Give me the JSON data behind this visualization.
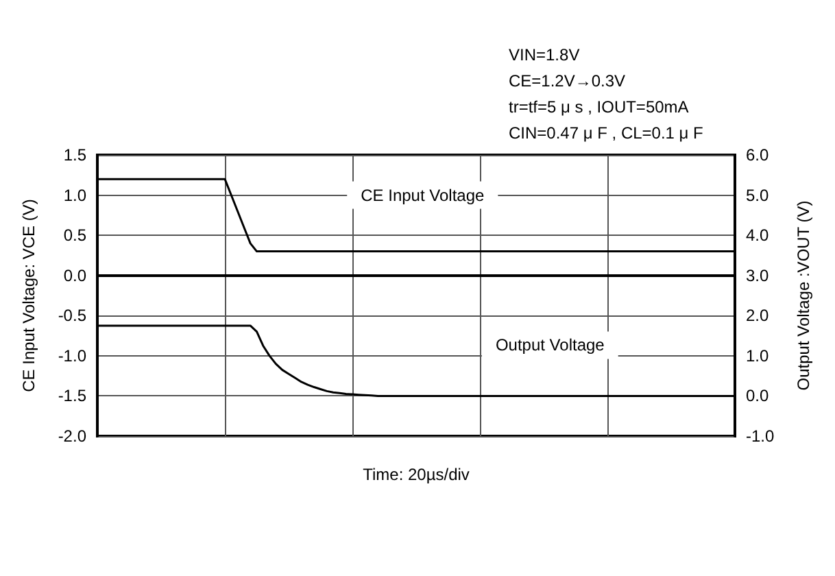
{
  "chart_data": {
    "type": "line",
    "annotations": [
      "VIN=1.8V",
      "CE=1.2V→0.3V",
      "tr=tf=5 μ s , IOUT=50mA",
      "CIN=0.47 μ F , CL=0.1 μ F"
    ],
    "xlabel": "Time: 20µs/div",
    "ylabel": "CE Input Voltage: VCE (V)",
    "y2label": "Output Voltage :VOUT (V)",
    "categories": [
      null,
      null,
      null,
      null,
      null,
      null,
      null,
      null,
      null,
      null,
      null,
      null,
      null,
      null,
      null,
      null,
      null,
      null,
      null,
      null,
      null,
      null,
      null,
      null,
      null,
      null,
      null,
      null,
      null,
      null,
      null,
      null,
      null,
      null,
      null,
      null,
      null,
      null,
      null,
      null,
      null,
      null,
      null,
      null,
      null,
      null,
      null,
      null,
      null,
      null,
      null,
      null,
      null,
      null,
      null,
      null,
      null,
      null,
      null,
      null,
      null,
      null,
      null,
      null,
      null,
      null,
      null,
      null,
      null,
      null,
      null,
      null,
      null,
      null,
      null,
      null,
      null,
      null,
      null,
      null,
      null,
      null,
      null,
      null,
      null,
      null,
      null,
      null,
      null,
      null,
      null,
      null,
      null,
      null,
      null,
      null,
      null,
      null,
      null,
      null,
      null
    ],
    "ylim": [
      -2.0,
      1.5
    ],
    "yticks": [
      {
        "value": -2.0,
        "label": "-2.0"
      },
      {
        "value": -1.5,
        "label": "-1.5"
      },
      {
        "value": -1.0,
        "label": "-1.0"
      },
      {
        "value": -0.5,
        "label": "-0.5"
      },
      {
        "value": 0,
        "label": "0.0"
      },
      {
        "value": 0.5,
        "label": "0.5"
      },
      {
        "value": 1.0,
        "label": "1.0"
      },
      {
        "value": 1.5,
        "label": "1.5"
      }
    ],
    "y2lim": [
      -1.0,
      6.0
    ],
    "y2ticks": [
      {
        "value": -1.0,
        "label": "-1.0"
      },
      {
        "value": 0,
        "label": "0.0"
      },
      {
        "value": 1.0,
        "label": "1.0"
      },
      {
        "value": 2.0,
        "label": "2.0"
      },
      {
        "value": 3.0,
        "label": "3.0"
      },
      {
        "value": 4.0,
        "label": "4.0"
      },
      {
        "value": 5.0,
        "label": "5.0"
      },
      {
        "value": 6.0,
        "label": "6.0"
      }
    ],
    "grid": true,
    "marker": "none",
    "series": [
      {
        "name": "CE Input Voltage",
        "color": "#000000",
        "values": [
          1.2,
          1.2,
          1.2,
          1.2,
          1.2,
          1.2,
          1.2,
          1.2,
          1.2,
          1.2,
          1.2,
          1.2,
          1.2,
          1.2,
          1.2,
          1.2,
          1.2,
          1.2,
          1.2,
          1.2,
          1.2,
          1.0,
          0.8,
          0.6,
          0.4,
          0.3,
          0.3,
          0.3,
          0.3,
          0.3,
          0.3,
          0.3,
          0.3,
          0.3,
          0.3,
          0.3,
          0.3,
          0.3,
          0.3,
          0.3,
          0.3,
          0.3,
          0.3,
          0.3,
          0.3,
          0.3,
          0.3,
          0.3,
          0.3,
          0.3,
          0.3,
          0.3,
          0.3,
          0.3,
          0.3,
          0.3,
          0.3,
          0.3,
          0.3,
          0.3,
          0.3,
          0.3,
          0.3,
          0.3,
          0.3,
          0.3,
          0.3,
          0.3,
          0.3,
          0.3,
          0.3,
          0.3,
          0.3,
          0.3,
          0.3,
          0.3,
          0.3,
          0.3,
          0.3,
          0.3,
          0.3,
          0.3,
          0.3,
          0.3,
          0.3,
          0.3,
          0.3,
          0.3,
          0.3,
          0.3,
          0.3,
          0.3,
          0.3,
          0.3,
          0.3,
          0.3,
          0.3,
          0.3,
          0.3,
          0.3,
          0.3
        ]
      },
      {
        "name": "Output Voltage",
        "color": "#000000",
        "axis": "y2",
        "values": [
          1.75,
          1.75,
          1.75,
          1.75,
          1.75,
          1.75,
          1.75,
          1.75,
          1.75,
          1.75,
          1.75,
          1.75,
          1.75,
          1.75,
          1.75,
          1.75,
          1.75,
          1.75,
          1.75,
          1.75,
          1.75,
          1.75,
          1.75,
          1.75,
          1.75,
          1.6,
          1.25,
          1.0,
          0.8,
          0.65,
          0.55,
          0.45,
          0.35,
          0.28,
          0.22,
          0.17,
          0.12,
          0.09,
          0.07,
          0.05,
          0.04,
          0.03,
          0.02,
          0.01,
          0,
          0,
          0,
          0,
          0,
          0,
          0,
          0,
          0,
          0,
          0,
          0,
          0,
          0,
          0,
          0,
          0,
          0,
          0,
          0,
          0,
          0,
          0,
          0,
          0,
          0,
          0,
          0,
          0,
          0,
          0,
          0,
          0,
          0,
          0,
          0,
          0,
          0,
          0,
          0,
          0,
          0,
          0,
          0,
          0,
          0,
          0,
          0,
          0,
          0,
          0,
          0,
          0,
          0,
          0,
          0,
          0
        ]
      }
    ]
  }
}
